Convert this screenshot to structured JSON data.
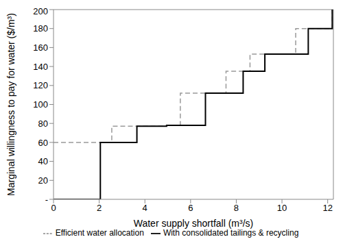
{
  "chart_data": {
    "type": "line",
    "x_label": "Water supply shortfall (m³/s)",
    "y_label": "Marginal willingness to pay for water ($/m³)",
    "xlim": [
      0,
      12.25
    ],
    "xticks": [
      0,
      2,
      4,
      6,
      8,
      10,
      12
    ],
    "ylim": [
      0,
      200
    ],
    "yticks": [
      {
        "value": 0,
        "label": "-"
      },
      20,
      40,
      60,
      80,
      100,
      120,
      140,
      160,
      180,
      200
    ],
    "grid": false,
    "legend": "bottom",
    "line_style": "step",
    "series": [
      {
        "name": "Efficient water allocation",
        "color": "#999999",
        "line_style": "dashed",
        "x": [
          0,
          2.55,
          4.95,
          5.55,
          7.55,
          8.6,
          10.6,
          12.2
        ],
        "values": [
          60,
          77,
          78,
          112,
          135,
          153,
          180,
          200
        ]
      },
      {
        "name": "With consolidated tailings & recycling",
        "color": "#000000",
        "line_style": "solid",
        "x": [
          0,
          2.05,
          3.65,
          4.95,
          6.65,
          8.3,
          9.25,
          11.15,
          12.2
        ],
        "values": [
          0,
          60,
          77,
          78,
          112,
          135,
          153,
          180,
          200
        ]
      }
    ]
  }
}
